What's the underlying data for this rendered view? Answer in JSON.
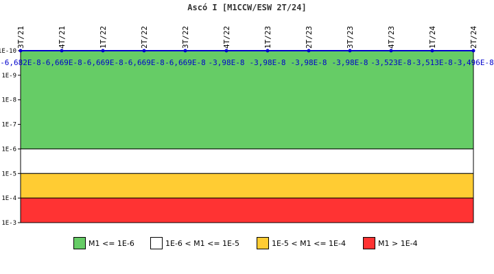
{
  "chart_data": {
    "type": "line",
    "title": "Ascó I [M1CCW/ESW 2T/24]",
    "x": [
      "3T/21",
      "4T/21",
      "1T/22",
      "2T/22",
      "3T/22",
      "4T/22",
      "1T/23",
      "2T/23",
      "3T/23",
      "4T/23",
      "1T/24",
      "2T/24"
    ],
    "series": [
      {
        "values": [
          -6.682e-08,
          -6.669e-08,
          -6.669e-08,
          -6.669e-08,
          -6.669e-08,
          -3.98e-08,
          -3.98e-08,
          -3.98e-08,
          -3.98e-08,
          -3.523e-08,
          -3.513e-08,
          -3.496e-08
        ],
        "labels": [
          "-6,682E-8",
          "-6,669E-8",
          "-6,669E-8",
          "-6,669E-8",
          "-6,669E-8",
          "-3,98E-8",
          "-3,98E-8",
          "-3,98E-8",
          "-3,98E-8",
          "-3,523E-8",
          "-3,513E-8",
          "-3,496E-8"
        ],
        "color": "#0000cc"
      }
    ],
    "yscale": "log",
    "ylim": [
      1e-10,
      0.001
    ],
    "y_inverted": true,
    "yticks": [
      {
        "value": 1e-10,
        "label": "1E-10"
      },
      {
        "value": 1e-09,
        "label": "1E-9"
      },
      {
        "value": 1e-08,
        "label": "1E-8"
      },
      {
        "value": 1e-07,
        "label": "1E-7"
      },
      {
        "value": 1e-06,
        "label": "1E-6"
      },
      {
        "value": 1e-05,
        "label": "1E-5"
      },
      {
        "value": 0.0001,
        "label": "1E-4"
      },
      {
        "value": 0.001,
        "label": "1E-3"
      }
    ],
    "bands": [
      {
        "from": 1e-10,
        "to": 1e-06,
        "color": "#66cc66"
      },
      {
        "from": 1e-06,
        "to": 1e-05,
        "color": "#ffffff"
      },
      {
        "from": 1e-05,
        "to": 0.0001,
        "color": "#ffcc33"
      },
      {
        "from": 0.0001,
        "to": 0.001,
        "color": "#ff3333"
      }
    ],
    "legend": {
      "position": "bottom",
      "items": [
        {
          "label": "M1 <= 1E-6",
          "color": "#66cc66"
        },
        {
          "label": "1E-6 < M1 <= 1E-5",
          "color": "#ffffff"
        },
        {
          "label": "1E-5 < M1 <= 1E-4",
          "color": "#ffcc33"
        },
        {
          "label": "M1 > 1E-4",
          "color": "#ff3333"
        }
      ]
    }
  }
}
